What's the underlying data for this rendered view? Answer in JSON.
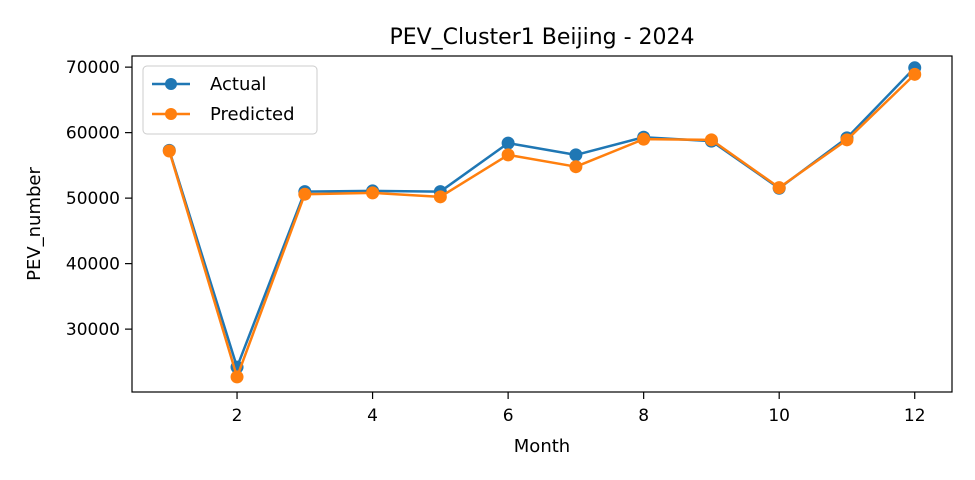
{
  "chart_data": {
    "type": "line",
    "title": "PEV_Cluster1 Beijing - 2024",
    "xlabel": "Month",
    "ylabel": "PEV_number",
    "x": [
      1,
      2,
      3,
      4,
      5,
      6,
      7,
      8,
      9,
      10,
      11,
      12
    ],
    "xlim": [
      0.45,
      12.55
    ],
    "ylim": [
      20400,
      71700
    ],
    "xticks": [
      2,
      4,
      6,
      8,
      10,
      12
    ],
    "yticks": [
      30000,
      40000,
      50000,
      60000,
      70000
    ],
    "grid": false,
    "legend_position": "upper-left",
    "series": [
      {
        "name": "Actual",
        "color": "#1f77b4",
        "values": [
          57300,
          24200,
          51000,
          51100,
          51000,
          58400,
          56600,
          59300,
          58700,
          51500,
          59200,
          69900
        ]
      },
      {
        "name": "Predicted",
        "color": "#ff7f0e",
        "values": [
          57200,
          22700,
          50600,
          50800,
          50200,
          56600,
          54800,
          59000,
          58900,
          51600,
          58900,
          68900
        ]
      }
    ]
  }
}
